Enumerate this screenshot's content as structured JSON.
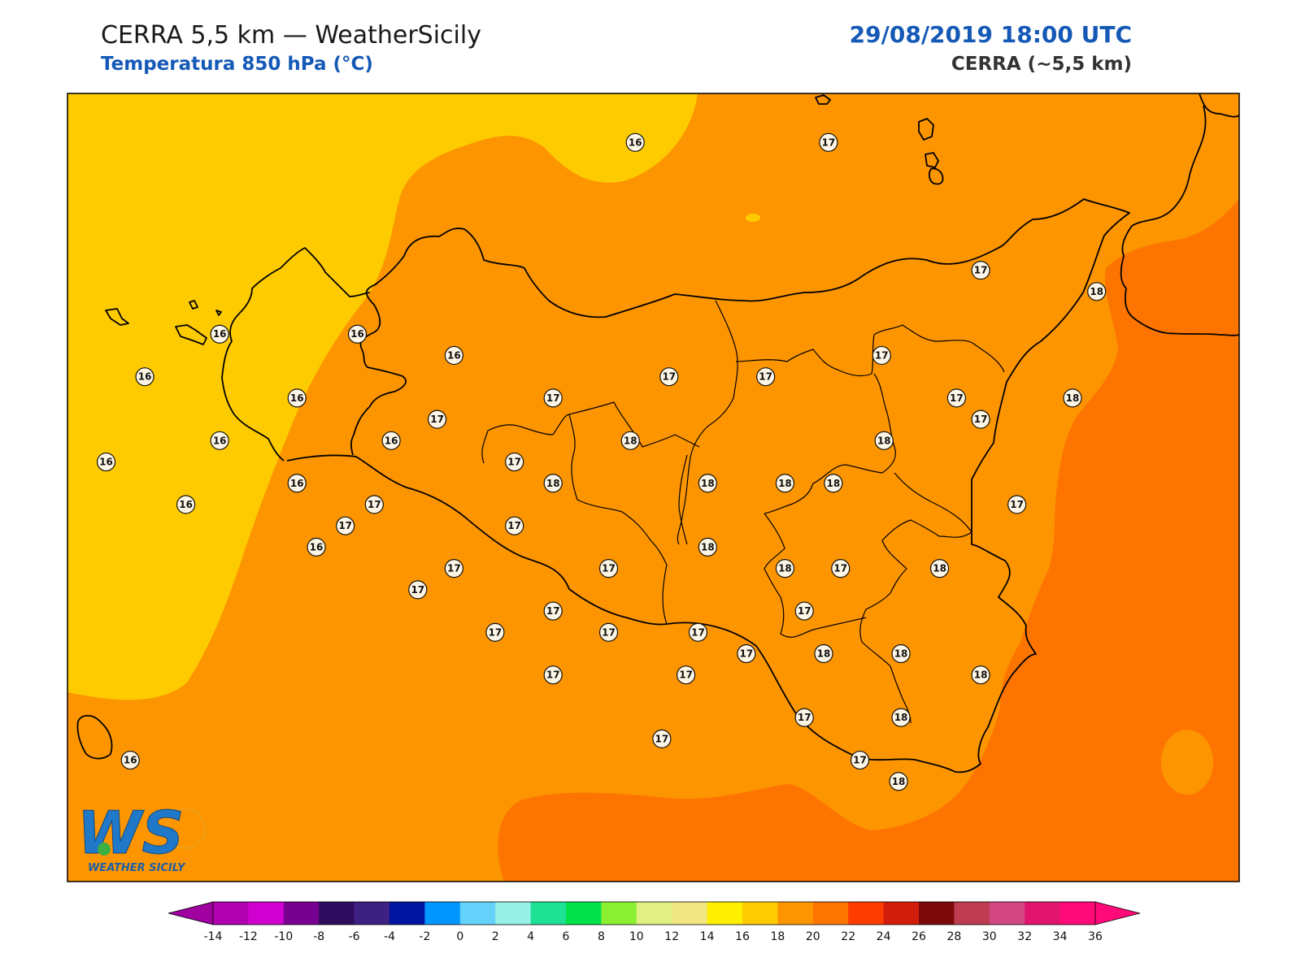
{
  "header": {
    "title": "CERRA 5,5 km — WeatherSicily",
    "subtitle": "Temperatura 850 hPa (°C)",
    "datetime": "29/08/2019 18:00 UTC",
    "model": "CERRA (~5,5 km)"
  },
  "colors": {
    "field_14_16": "#fecb00",
    "field_16_18": "#fd9500",
    "field_18_20": "#fd7500",
    "coast": "#000000"
  },
  "logo": {
    "letters": "WS",
    "caption": "WEATHER SICILY"
  },
  "colorbar": {
    "ticks": [
      -14,
      -12,
      -10,
      -8,
      -6,
      -4,
      -2,
      0,
      2,
      4,
      6,
      8,
      10,
      12,
      14,
      16,
      18,
      20,
      22,
      24,
      26,
      28,
      30,
      32,
      34,
      36
    ],
    "colors": [
      "#b000b0",
      "#d000d0",
      "#780090",
      "#2e0c5e",
      "#3c2082",
      "#0014a0",
      "#0096ff",
      "#64d2fa",
      "#96f0e6",
      "#1ee196",
      "#00e14b",
      "#8cf032",
      "#e1f082",
      "#f0e682",
      "#fff000",
      "#fecb00",
      "#fd9500",
      "#fd7500",
      "#ff3c00",
      "#d21e0a",
      "#7d0a0a",
      "#be3c50",
      "#d24682",
      "#e1146e",
      "#ff0a78"
    ],
    "under_color": "#a000a0",
    "over_color": "#ff0a78"
  },
  "stations": [
    {
      "v": "16",
      "lon": 14.05,
      "lat": 39.07
    },
    {
      "v": "17",
      "lon": 14.85,
      "lat": 39.07
    },
    {
      "v": "17",
      "lon": 15.48,
      "lat": 38.47
    },
    {
      "v": "18",
      "lon": 15.96,
      "lat": 38.37
    },
    {
      "v": "16",
      "lon": 12.33,
      "lat": 38.17
    },
    {
      "v": "16",
      "lon": 12.9,
      "lat": 38.17
    },
    {
      "v": "16",
      "lon": 13.3,
      "lat": 38.07
    },
    {
      "v": "17",
      "lon": 15.07,
      "lat": 38.07
    },
    {
      "v": "16",
      "lon": 12.02,
      "lat": 37.97
    },
    {
      "v": "17",
      "lon": 14.19,
      "lat": 37.97
    },
    {
      "v": "17",
      "lon": 14.59,
      "lat": 37.97
    },
    {
      "v": "17",
      "lon": 15.38,
      "lat": 37.87
    },
    {
      "v": "18",
      "lon": 15.86,
      "lat": 37.87
    },
    {
      "v": "16",
      "lon": 12.65,
      "lat": 37.87
    },
    {
      "v": "17",
      "lon": 13.71,
      "lat": 37.87
    },
    {
      "v": "17",
      "lon": 13.23,
      "lat": 37.77
    },
    {
      "v": "17",
      "lon": 15.48,
      "lat": 37.77
    },
    {
      "v": "16",
      "lon": 12.33,
      "lat": 37.67
    },
    {
      "v": "16",
      "lon": 13.04,
      "lat": 37.67
    },
    {
      "v": "18",
      "lon": 14.03,
      "lat": 37.67
    },
    {
      "v": "18",
      "lon": 15.08,
      "lat": 37.67
    },
    {
      "v": "16",
      "lon": 11.86,
      "lat": 37.57
    },
    {
      "v": "17",
      "lon": 13.55,
      "lat": 37.57
    },
    {
      "v": "18",
      "lon": 13.71,
      "lat": 37.47
    },
    {
      "v": "18",
      "lon": 14.35,
      "lat": 37.47
    },
    {
      "v": "18",
      "lon": 14.67,
      "lat": 37.47
    },
    {
      "v": "18",
      "lon": 14.87,
      "lat": 37.47
    },
    {
      "v": "16",
      "lon": 12.65,
      "lat": 37.47
    },
    {
      "v": "16",
      "lon": 12.19,
      "lat": 37.37
    },
    {
      "v": "17",
      "lon": 12.97,
      "lat": 37.37
    },
    {
      "v": "17",
      "lon": 15.63,
      "lat": 37.37
    },
    {
      "v": "17",
      "lon": 12.85,
      "lat": 37.27
    },
    {
      "v": "17",
      "lon": 13.55,
      "lat": 37.27
    },
    {
      "v": "16",
      "lon": 12.73,
      "lat": 37.17
    },
    {
      "v": "18",
      "lon": 14.35,
      "lat": 37.17
    },
    {
      "v": "17",
      "lon": 13.3,
      "lat": 37.07
    },
    {
      "v": "17",
      "lon": 13.94,
      "lat": 37.07
    },
    {
      "v": "18",
      "lon": 14.67,
      "lat": 37.07
    },
    {
      "v": "17",
      "lon": 14.9,
      "lat": 37.07
    },
    {
      "v": "18",
      "lon": 15.31,
      "lat": 37.07
    },
    {
      "v": "17",
      "lon": 13.15,
      "lat": 36.97
    },
    {
      "v": "17",
      "lon": 14.75,
      "lat": 36.87
    },
    {
      "v": "17",
      "lon": 13.71,
      "lat": 36.87
    },
    {
      "v": "17",
      "lon": 13.47,
      "lat": 36.77
    },
    {
      "v": "17",
      "lon": 13.94,
      "lat": 36.77
    },
    {
      "v": "17",
      "lon": 14.31,
      "lat": 36.77
    },
    {
      "v": "17",
      "lon": 14.51,
      "lat": 36.67
    },
    {
      "v": "18",
      "lon": 14.83,
      "lat": 36.67
    },
    {
      "v": "18",
      "lon": 15.15,
      "lat": 36.67
    },
    {
      "v": "18",
      "lon": 15.48,
      "lat": 36.57
    },
    {
      "v": "17",
      "lon": 13.71,
      "lat": 36.57
    },
    {
      "v": "17",
      "lon": 14.26,
      "lat": 36.57
    },
    {
      "v": "17",
      "lon": 14.75,
      "lat": 36.37
    },
    {
      "v": "18",
      "lon": 15.15,
      "lat": 36.37
    },
    {
      "v": "17",
      "lon": 14.16,
      "lat": 36.27
    },
    {
      "v": "17",
      "lon": 14.98,
      "lat": 36.17
    },
    {
      "v": "18",
      "lon": 15.14,
      "lat": 36.07
    },
    {
      "v": "16",
      "lon": 11.96,
      "lat": 36.17
    }
  ]
}
